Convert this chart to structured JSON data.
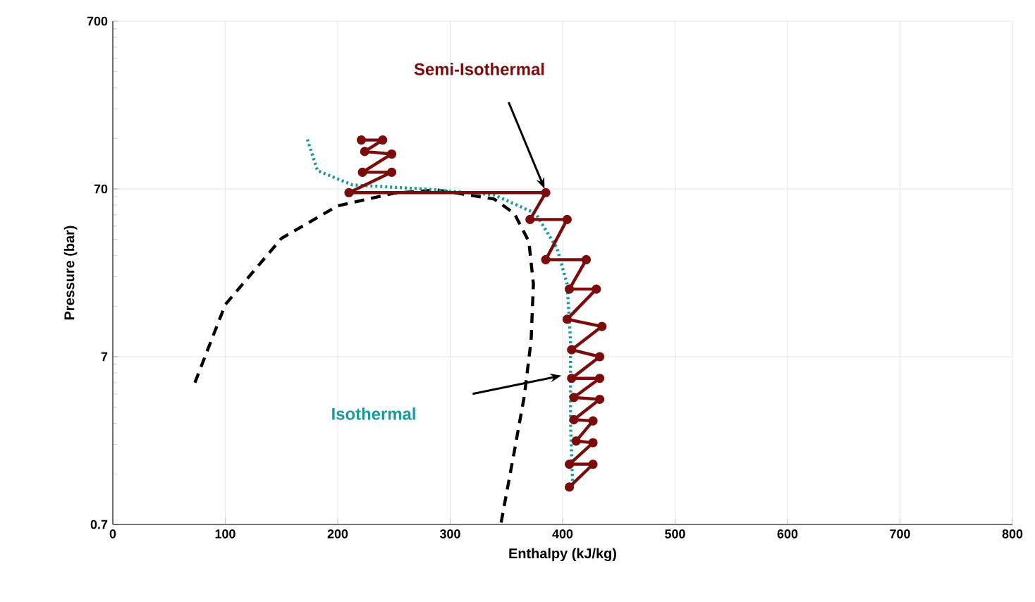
{
  "chart_data": {
    "type": "line",
    "xlabel": "Enthalpy (kJ/kg)",
    "ylabel": "Pressure (bar)",
    "log": "y",
    "grid": true,
    "legend": false,
    "xlim": [
      0,
      800
    ],
    "ylim": [
      0.7,
      700
    ],
    "xticks": [
      0,
      100,
      200,
      300,
      400,
      500,
      600,
      700,
      800
    ],
    "yticks": [
      0.7,
      7,
      70,
      700
    ],
    "series": [
      {
        "color": "#000000",
        "line_style": "dashed",
        "marker": "none",
        "x": [
          73,
          100,
          150,
          200,
          250,
          288,
          300,
          339,
          357,
          370,
          374,
          372,
          366,
          357,
          345
        ],
        "values": [
          4.9,
          14.3,
          35.5,
          55.5,
          66,
          69,
          67,
          61,
          50,
          34,
          19,
          8.8,
          4.1,
          1.9,
          0.7
        ]
      },
      {
        "name": "Isothermal",
        "color": "#1a9a9a",
        "line_style": "dotted",
        "marker": "none",
        "x": [
          173,
          182,
          213,
          276,
          339,
          376,
          395,
          404,
          407,
          407,
          409
        ],
        "values": [
          138,
          90,
          74,
          70,
          64.5,
          50,
          31,
          19,
          8.8,
          2.8,
          1.16
        ]
      },
      {
        "name": "Semi-Isothermal",
        "color": "#7b0c0c",
        "line_style": "solid",
        "marker": "circle",
        "x": [
          221,
          240,
          224,
          248,
          222,
          248,
          210,
          385,
          371,
          404,
          385,
          421,
          406,
          430,
          404,
          435,
          408,
          433,
          408,
          433,
          410,
          433,
          410,
          427,
          412,
          427,
          406,
          427,
          406
        ],
        "values": [
          137,
          137,
          117,
          113,
          88,
          88,
          66.5,
          66.5,
          46,
          46,
          26.5,
          26.5,
          17.7,
          17.7,
          11.7,
          10.6,
          7.7,
          7,
          5.2,
          5.2,
          4,
          3.9,
          2.95,
          2.9,
          2.2,
          2.15,
          1.6,
          1.6,
          1.17
        ]
      }
    ]
  }
}
